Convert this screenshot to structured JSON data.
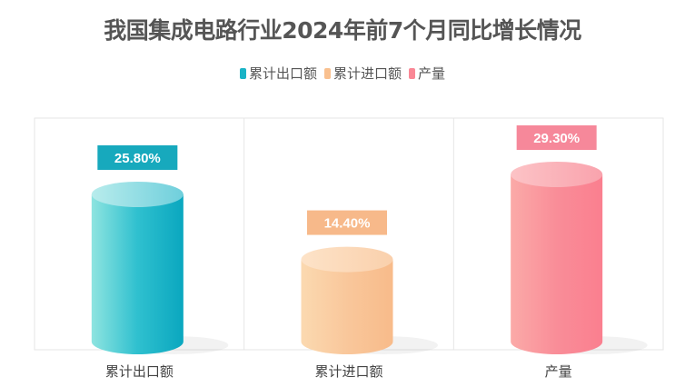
{
  "chart_data": {
    "type": "bar",
    "title": "我国集成电路行业2024年前7个月同比增长情况",
    "categories": [
      "累计出口额",
      "累计进口额",
      "产量"
    ],
    "values": [
      25.8,
      14.4,
      29.3
    ],
    "value_labels": [
      "25.80%",
      "14.40%",
      "29.30%"
    ],
    "unit": "%",
    "legend": [
      "累计出口额",
      "累计进口额",
      "产量"
    ],
    "legend_position": "top",
    "colors": [
      "#1ab3c6",
      "#f9c08f",
      "#fa8795"
    ],
    "label_colors": [
      "#17a9bd",
      "#f7b98a",
      "#f6889a"
    ],
    "grid": true,
    "xlabel": "",
    "ylabel": "",
    "ylim": [
      0,
      30
    ]
  }
}
